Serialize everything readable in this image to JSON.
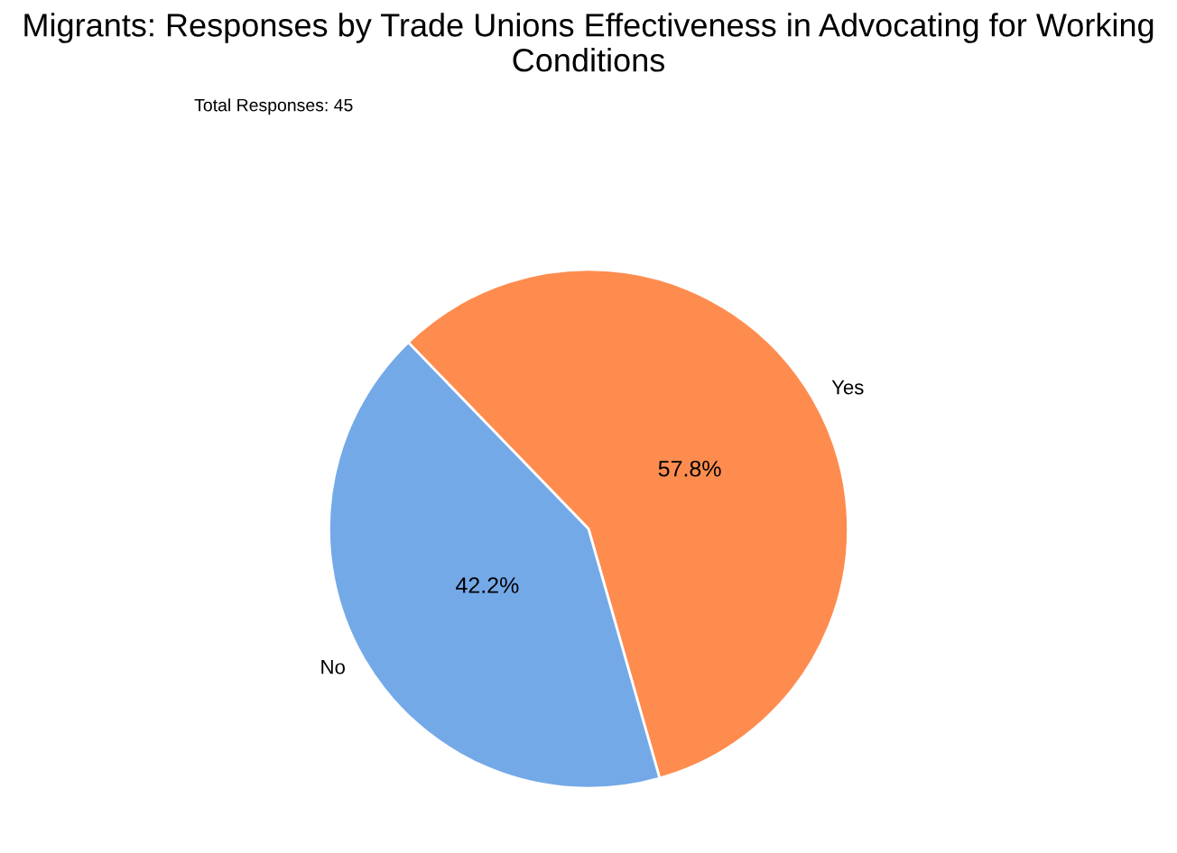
{
  "chart_data": {
    "type": "pie",
    "title": "Migrants: Responses by Trade Unions Effectiveness in Advocating for Working Conditions",
    "annotations": [
      "Total Responses: 45"
    ],
    "categories": [
      "Yes",
      "No"
    ],
    "values": [
      57.8,
      42.2
    ],
    "value_labels": [
      "57.8%",
      "42.2%"
    ],
    "colors": [
      "#fe8c4f",
      "#74a9e8"
    ]
  }
}
